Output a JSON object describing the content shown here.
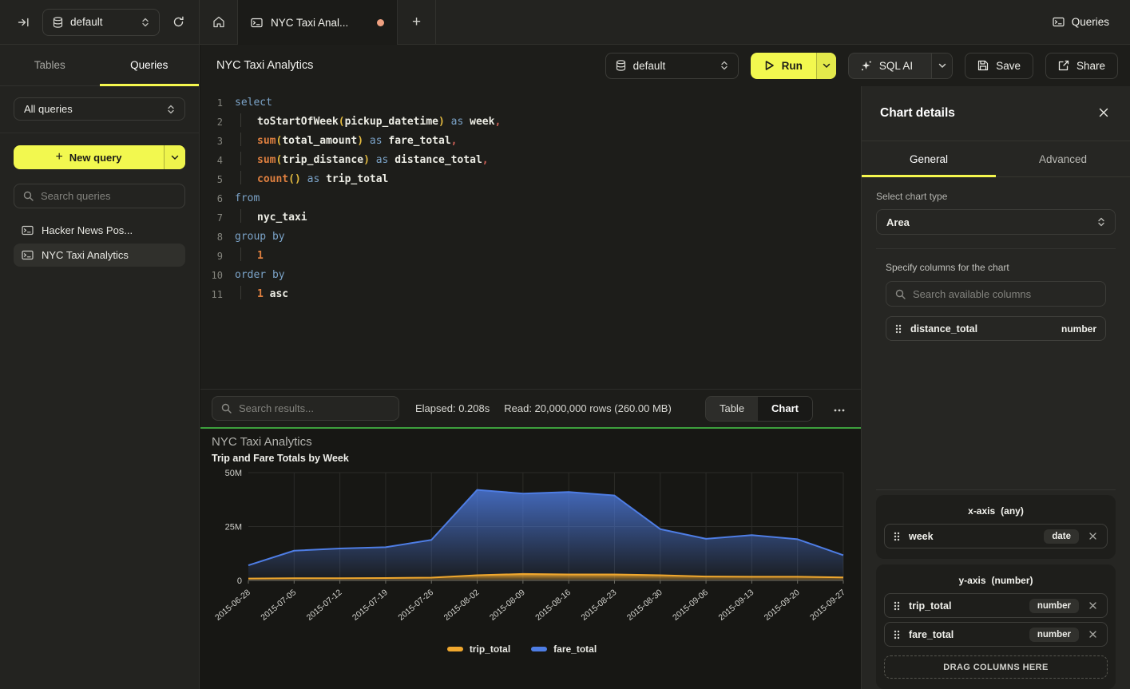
{
  "topbar": {
    "database_selector": "default",
    "tab_title": "NYC Taxi Anal...",
    "queries_button": "Queries"
  },
  "sidebar": {
    "tab_tables": "Tables",
    "tab_queries": "Queries",
    "filter_value": "All queries",
    "new_query_label": "New query",
    "search_placeholder": "Search queries",
    "items": [
      {
        "label": "Hacker News Pos...",
        "selected": false
      },
      {
        "label": "NYC Taxi Analytics",
        "selected": true
      }
    ]
  },
  "header": {
    "title": "NYC Taxi Analytics",
    "database_selector": "default",
    "run_label": "Run",
    "sql_ai_label": "SQL AI",
    "save_label": "Save",
    "share_label": "Share"
  },
  "editor": {
    "lines": [
      {
        "n": "1",
        "indent": false,
        "tokens": [
          [
            "kw",
            "select"
          ]
        ]
      },
      {
        "n": "2",
        "indent": true,
        "tokens": [
          [
            "id",
            "toStartOfWeek"
          ],
          [
            "paren",
            "("
          ],
          [
            "id",
            "pickup_datetime"
          ],
          [
            "paren",
            ")"
          ],
          [
            "plain",
            " "
          ],
          [
            "kw",
            "as"
          ],
          [
            "plain",
            " "
          ],
          [
            "id",
            "week"
          ],
          [
            "punct",
            ","
          ]
        ]
      },
      {
        "n": "3",
        "indent": true,
        "tokens": [
          [
            "fn",
            "sum"
          ],
          [
            "paren",
            "("
          ],
          [
            "id",
            "total_amount"
          ],
          [
            "paren",
            ")"
          ],
          [
            "plain",
            " "
          ],
          [
            "kw",
            "as"
          ],
          [
            "plain",
            " "
          ],
          [
            "id",
            "fare_total"
          ],
          [
            "punct",
            ","
          ]
        ]
      },
      {
        "n": "4",
        "indent": true,
        "tokens": [
          [
            "fn",
            "sum"
          ],
          [
            "paren",
            "("
          ],
          [
            "id",
            "trip_distance"
          ],
          [
            "paren",
            ")"
          ],
          [
            "plain",
            " "
          ],
          [
            "kw",
            "as"
          ],
          [
            "plain",
            " "
          ],
          [
            "id",
            "distance_total"
          ],
          [
            "punct",
            ","
          ]
        ]
      },
      {
        "n": "5",
        "indent": true,
        "tokens": [
          [
            "fn",
            "count"
          ],
          [
            "paren",
            "()"
          ],
          [
            "plain",
            " "
          ],
          [
            "kw",
            "as"
          ],
          [
            "plain",
            " "
          ],
          [
            "id",
            "trip_total"
          ]
        ]
      },
      {
        "n": "6",
        "indent": false,
        "tokens": [
          [
            "kw",
            "from"
          ]
        ]
      },
      {
        "n": "7",
        "indent": true,
        "tokens": [
          [
            "id",
            "nyc_taxi"
          ]
        ]
      },
      {
        "n": "8",
        "indent": false,
        "tokens": [
          [
            "kw",
            "group by"
          ]
        ]
      },
      {
        "n": "9",
        "indent": true,
        "tokens": [
          [
            "num",
            "1"
          ]
        ]
      },
      {
        "n": "10",
        "indent": false,
        "tokens": [
          [
            "kw",
            "order by"
          ]
        ]
      },
      {
        "n": "11",
        "indent": true,
        "tokens": [
          [
            "num",
            "1"
          ],
          [
            "plain",
            " "
          ],
          [
            "id",
            "asc"
          ]
        ]
      }
    ]
  },
  "results_bar": {
    "search_placeholder": "Search results...",
    "elapsed": "Elapsed: 0.208s",
    "read": "Read: 20,000,000 rows (260.00 MB)",
    "view_toggle": {
      "table": "Table",
      "chart": "Chart",
      "active": "Chart"
    }
  },
  "chart_panel": {
    "title": "NYC Taxi Analytics",
    "subtitle": "Trip and Fare Totals by Week"
  },
  "chart_data": {
    "type": "area",
    "title": "NYC Taxi Analytics",
    "subtitle": "Trip and Fare Totals by Week",
    "x": [
      "2015-06-28",
      "2015-07-05",
      "2015-07-12",
      "2015-07-19",
      "2015-07-26",
      "2015-08-02",
      "2015-08-09",
      "2015-08-16",
      "2015-08-23",
      "2015-08-30",
      "2015-09-06",
      "2015-09-13",
      "2015-09-20",
      "2015-09-27"
    ],
    "series": [
      {
        "name": "trip_total",
        "color": "#efa72e",
        "values_millions": [
          0.9,
          1.0,
          1.0,
          1.1,
          1.3,
          2.4,
          3.0,
          2.8,
          2.8,
          2.4,
          1.8,
          1.7,
          1.7,
          1.4
        ]
      },
      {
        "name": "fare_total",
        "color": "#4e7de4",
        "values_millions": [
          7,
          13.8,
          14.8,
          15.4,
          18.8,
          42,
          40.3,
          41,
          39.4,
          23.8,
          19.3,
          21,
          19.1,
          11.7
        ]
      }
    ],
    "ylim_millions": [
      0,
      50
    ],
    "yticks": [
      {
        "v": 0,
        "label": "0"
      },
      {
        "v": 25,
        "label": "25M"
      },
      {
        "v": 50,
        "label": "50M"
      }
    ],
    "grid": true,
    "legend_position": "bottom"
  },
  "chart_details": {
    "title": "Chart details",
    "tab_general": "General",
    "tab_advanced": "Advanced",
    "chart_type_label": "Select chart type",
    "chart_type_value": "Area",
    "columns_label": "Specify columns for the chart",
    "columns_search_placeholder": "Search available columns",
    "available_columns": [
      {
        "name": "distance_total",
        "type": "number"
      }
    ],
    "x_axis": {
      "title": "x-axis",
      "constraint": "(any)",
      "columns": [
        {
          "name": "week",
          "type": "date"
        }
      ]
    },
    "y_axis": {
      "title": "y-axis",
      "constraint": "(number)",
      "columns": [
        {
          "name": "trip_total",
          "type": "number"
        },
        {
          "name": "fare_total",
          "type": "number"
        }
      ]
    },
    "drop_zone_label": "DRAG COLUMNS HERE"
  },
  "colors": {
    "accent_yellow": "#f2f84f",
    "series_blue": "#4e7de4",
    "series_orange": "#efa72e",
    "divider_green": "#3da03d",
    "unsaved_dot": "#efa080"
  }
}
